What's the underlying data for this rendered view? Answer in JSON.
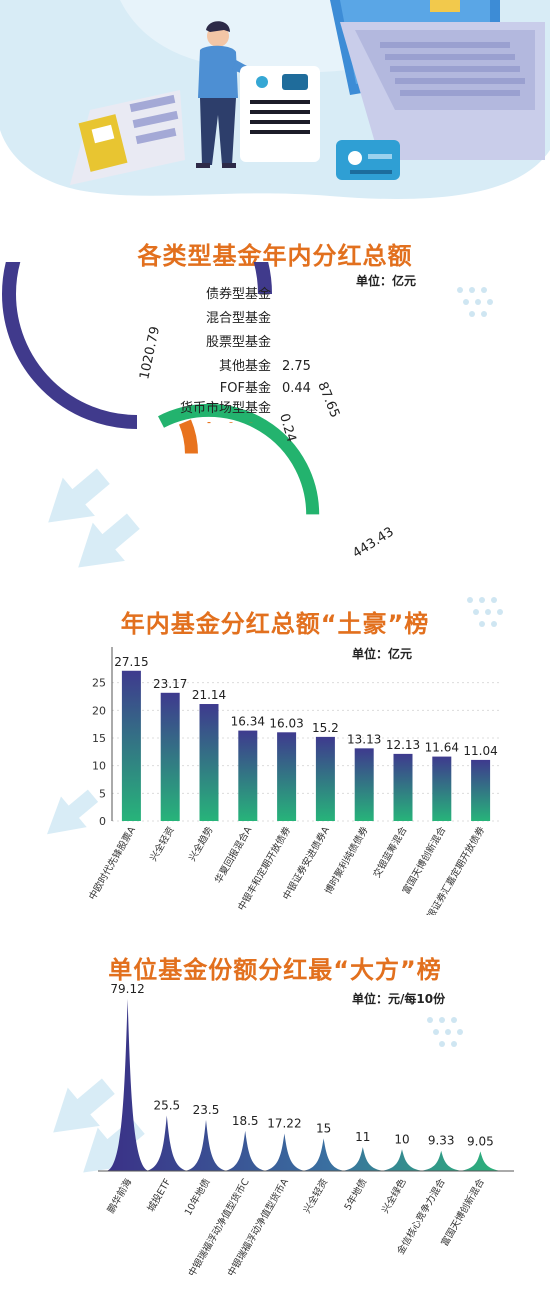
{
  "colors": {
    "title": "#e2701e",
    "bond": "#403a8c",
    "mixed": "#23b36e",
    "equity": "#e8731e",
    "bar_top": "#3e3a8e",
    "bar_bottom": "#27b47a",
    "hero_bg": "#d8ecf6"
  },
  "sections": [
    {
      "title": "各类型基金年内分红总额",
      "unit": "单位：亿元"
    },
    {
      "title": "年内基金分红总额“土豪”榜",
      "unit": "单位：亿元"
    },
    {
      "title": "单位基金份额分红最“大方”榜",
      "unit": "单位：元/每10份"
    }
  ],
  "chart_data": [
    {
      "type": "pie",
      "title": "各类型基金年内分红总额",
      "unit": "单位：亿元",
      "style": "concentric-arcs",
      "max_value": 1020.79,
      "max_sweep_degrees": 270,
      "categories": [
        "债券型基金",
        "混合型基金",
        "股票型基金",
        "其他基金",
        "FOF基金",
        "货币市场型基金"
      ],
      "values": [
        1020.79,
        443.43,
        87.65,
        2.75,
        0.44,
        0.24
      ],
      "value_labels": [
        "1020.79",
        "443.43",
        "87.65",
        "2.75",
        "0.44",
        "0.24"
      ]
    },
    {
      "type": "bar",
      "title": "年内基金分红总额“土豪”榜",
      "unit": "单位：亿元",
      "categories": [
        "中欧时代先锋股票A",
        "兴全轻资",
        "兴全趋势",
        "华夏回报混合A",
        "中银丰和定期开放债券",
        "中银证券安进债券A",
        "博时聚利纯债债券",
        "交银蓝筹混合",
        "富国天博创新混合",
        "中银证券汇嘉定期开放债券"
      ],
      "values": [
        27.15,
        23.17,
        21.14,
        16.34,
        16.03,
        15.2,
        13.13,
        12.13,
        11.64,
        11.04
      ],
      "value_labels": [
        "27.15",
        "23.17",
        "21.14",
        "16.34",
        "16.03",
        "15.2",
        "13.13",
        "12.13",
        "11.64",
        "11.04"
      ],
      "ylim": [
        0,
        30
      ],
      "yticks": [
        0,
        5,
        10,
        15,
        20,
        25
      ],
      "grid": true
    },
    {
      "type": "area",
      "style": "spikes",
      "title": "单位基金份额分红最“大方”榜",
      "unit": "单位：元/每10份",
      "categories": [
        "鹏华前海",
        "城投ETF",
        "10年地债",
        "中银瑞福浮动净值型货币C",
        "中银瑞福浮动净值型货币A",
        "兴全轻资",
        "5年地债",
        "兴全绿色",
        "金信核心竞争力混合",
        "富国天博创新混合"
      ],
      "values": [
        79.12,
        25.5,
        23.5,
        18.5,
        17.22,
        15,
        11,
        10,
        9.33,
        9.05
      ],
      "value_labels": [
        "79.12",
        "25.5",
        "23.5",
        "18.5",
        "17.22",
        "15",
        "11",
        "10",
        "9.33",
        "9.05"
      ],
      "ylim": [
        0,
        80
      ]
    }
  ]
}
